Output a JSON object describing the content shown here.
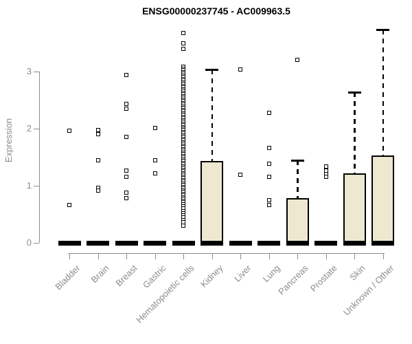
{
  "chart_data": {
    "type": "boxplot",
    "title": "ENSG00000237745 - AC009963.5",
    "ylabel": "Expression",
    "xlabel": "",
    "yticks": [
      0,
      1,
      2,
      3
    ],
    "ylim": [
      0,
      3.8
    ],
    "grid": false,
    "legend": "none",
    "categories": [
      "Bladder",
      "Brain",
      "Breast",
      "Gastric",
      "Hematopoietic cells",
      "Kidney",
      "Liver",
      "Lung",
      "Pancreas",
      "Prostate",
      "Skin",
      "Unknown / Other"
    ],
    "groups": [
      {
        "name": "Bladder",
        "q1": 0,
        "median": 0,
        "q3": 0,
        "whisker_low": 0,
        "whisker_high": 0,
        "outliers": [
          1.96,
          0.66
        ]
      },
      {
        "name": "Brain",
        "q1": 0,
        "median": 0,
        "q3": 0,
        "whisker_low": 0,
        "whisker_high": 0,
        "outliers": [
          1.98,
          1.9,
          1.45,
          0.96,
          0.92
        ]
      },
      {
        "name": "Breast",
        "q1": 0,
        "median": 0,
        "q3": 0,
        "whisker_low": 0,
        "whisker_high": 0,
        "outliers": [
          2.94,
          2.43,
          2.35,
          1.86,
          1.26,
          1.16,
          0.88,
          0.78
        ]
      },
      {
        "name": "Gastric",
        "q1": 0,
        "median": 0,
        "q3": 0,
        "whisker_low": 0,
        "whisker_high": 0,
        "outliers": [
          2.01,
          1.44,
          1.22
        ]
      },
      {
        "name": "Hematopoietic cells",
        "q1": 0,
        "median": 0,
        "q3": 0,
        "whisker_low": 0,
        "whisker_high": 0,
        "outliers": [
          3.68,
          3.49,
          3.4,
          3.08,
          3.05,
          3.02,
          2.99,
          2.96,
          2.93,
          2.9,
          2.87,
          2.84,
          2.81,
          2.78,
          2.75,
          2.72,
          2.69,
          2.66,
          2.63,
          2.6,
          2.57,
          2.54,
          2.51,
          2.48,
          2.45,
          2.42,
          2.39,
          2.36,
          2.33,
          2.3,
          2.27,
          2.24,
          2.21,
          2.18,
          2.15,
          2.12,
          2.09,
          2.06,
          2.03,
          2.0,
          1.97,
          1.94,
          1.91,
          1.88,
          1.85,
          1.82,
          1.79,
          1.76,
          1.73,
          1.7,
          1.67,
          1.64,
          1.61,
          1.58,
          1.55,
          1.52,
          1.49,
          1.46,
          1.43,
          1.4,
          1.37,
          1.34,
          1.31,
          1.28,
          1.25,
          1.22,
          1.19,
          1.16,
          1.13,
          1.1,
          1.07,
          1.04,
          1.01,
          0.98,
          0.95,
          0.92,
          0.89,
          0.86,
          0.83,
          0.8,
          0.77,
          0.74,
          0.71,
          0.68,
          0.64,
          0.6,
          0.56,
          0.52,
          0.48,
          0.44,
          0.4,
          0.36,
          0.3
        ]
      },
      {
        "name": "Kidney",
        "q1": 0,
        "median": 0,
        "q3": 1.43,
        "whisker_low": 0,
        "whisker_high": 3.04,
        "outliers": []
      },
      {
        "name": "Liver",
        "q1": 0,
        "median": 0,
        "q3": 0,
        "whisker_low": 0,
        "whisker_high": 0,
        "outliers": [
          3.04,
          1.19
        ]
      },
      {
        "name": "Lung",
        "q1": 0,
        "median": 0,
        "q3": 0,
        "whisker_low": 0,
        "whisker_high": 0,
        "outliers": [
          2.28,
          1.66,
          1.39,
          1.16,
          0.75,
          0.66
        ]
      },
      {
        "name": "Pancreas",
        "q1": 0,
        "median": 0,
        "q3": 0.78,
        "whisker_low": 0,
        "whisker_high": 1.44,
        "outliers": [
          3.2
        ]
      },
      {
        "name": "Prostate",
        "q1": 0,
        "median": 0,
        "q3": 0,
        "whisker_low": 0,
        "whisker_high": 0,
        "outliers": [
          1.34,
          1.27,
          1.21,
          1.16
        ]
      },
      {
        "name": "Skin",
        "q1": 0,
        "median": 0,
        "q3": 1.22,
        "whisker_low": 0,
        "whisker_high": 2.64,
        "outliers": []
      },
      {
        "name": "Unknown / Other",
        "q1": 0,
        "median": 0,
        "q3": 1.53,
        "whisker_low": 0,
        "whisker_high": 3.74,
        "outliers": []
      }
    ],
    "colors": {
      "box_fill": "#EEE8D0",
      "box_border": "#000000",
      "median": "#000000",
      "whisker": "#000000",
      "outlier_border": "#000000",
      "axis": "#8c8c8c",
      "tick_label": "#8c8c8c",
      "title": "#000000",
      "background": "#ffffff"
    }
  }
}
